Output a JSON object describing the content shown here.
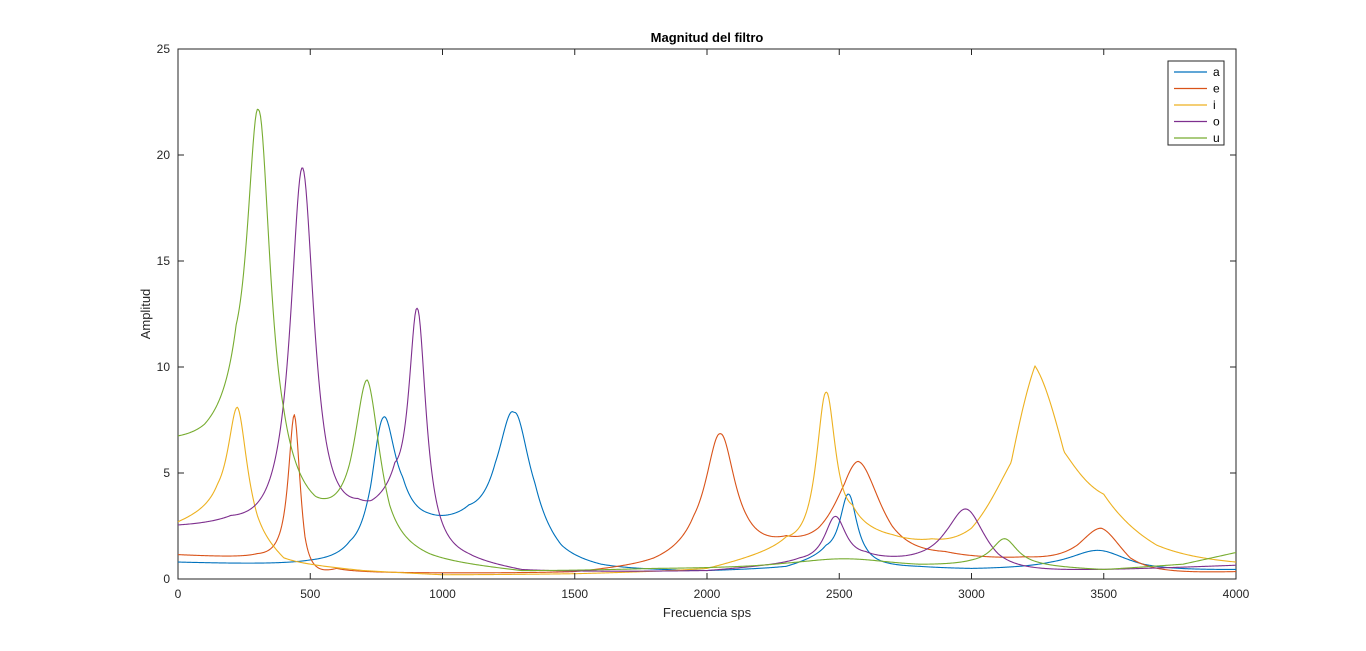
{
  "chart_data": {
    "type": "line",
    "title": "Magnitud del filtro",
    "xlabel": "Frecuencia sps",
    "ylabel": "Amplitud",
    "xlim": [
      0,
      4000
    ],
    "ylim": [
      0,
      25
    ],
    "xticks": [
      "0",
      "500",
      "1000",
      "1500",
      "2000",
      "2500",
      "3000",
      "3500",
      "4000"
    ],
    "yticks": [
      "0",
      "5",
      "10",
      "15",
      "20",
      "25"
    ],
    "grid": false,
    "legend_position": "top-right",
    "series": [
      {
        "name": "a",
        "color": "#0072BD",
        "baseline": 0.4,
        "peaks": [
          [
            775,
            7.2,
            60
          ],
          [
            1270,
            7.4,
            75
          ],
          [
            2535,
            3.6,
            40
          ],
          [
            3480,
            1.0,
            140
          ]
        ],
        "points": [
          [
            0,
            0.8
          ],
          [
            300,
            0.75
          ],
          [
            500,
            0.9
          ],
          [
            650,
            1.8
          ],
          [
            730,
            4.5
          ],
          [
            775,
            7.6
          ],
          [
            850,
            4.8
          ],
          [
            950,
            3.1
          ],
          [
            1000,
            3.0
          ],
          [
            1100,
            3.5
          ],
          [
            1200,
            5.5
          ],
          [
            1270,
            7.85
          ],
          [
            1350,
            4.5
          ],
          [
            1450,
            1.6
          ],
          [
            1600,
            0.7
          ],
          [
            2000,
            0.4
          ],
          [
            2300,
            0.6
          ],
          [
            2450,
            1.6
          ],
          [
            2535,
            4.0
          ],
          [
            2600,
            1.5
          ],
          [
            2800,
            0.6
          ],
          [
            3000,
            0.5
          ],
          [
            3300,
            0.8
          ],
          [
            3480,
            1.35
          ],
          [
            3650,
            0.7
          ],
          [
            4000,
            0.45
          ]
        ]
      },
      {
        "name": "e",
        "color": "#D95319",
        "baseline": 0.3,
        "peaks": [
          [
            440,
            7.3,
            28
          ],
          [
            2050,
            6.4,
            70
          ],
          [
            2570,
            4.9,
            110
          ],
          [
            3490,
            1.9,
            110
          ]
        ],
        "points": [
          [
            0,
            1.15
          ],
          [
            300,
            1.2
          ],
          [
            380,
            2.0
          ],
          [
            440,
            7.75
          ],
          [
            480,
            2.0
          ],
          [
            600,
            0.5
          ],
          [
            900,
            0.3
          ],
          [
            1500,
            0.35
          ],
          [
            1800,
            1.0
          ],
          [
            1950,
            3.0
          ],
          [
            2050,
            6.85
          ],
          [
            2150,
            3.0
          ],
          [
            2300,
            2.05
          ],
          [
            2420,
            2.4
          ],
          [
            2520,
            4.5
          ],
          [
            2570,
            5.55
          ],
          [
            2700,
            2.5
          ],
          [
            2900,
            1.3
          ],
          [
            3200,
            1.05
          ],
          [
            3400,
            1.6
          ],
          [
            3490,
            2.4
          ],
          [
            3600,
            1.0
          ],
          [
            4000,
            0.35
          ]
        ]
      },
      {
        "name": "i",
        "color": "#EDB120",
        "baseline": 0.2,
        "peaks": [
          [
            225,
            5.4,
            45
          ],
          [
            2450,
            8.2,
            45
          ],
          [
            3240,
            9.2,
            210
          ]
        ],
        "points": [
          [
            0,
            2.7
          ],
          [
            150,
            4.5
          ],
          [
            225,
            8.1
          ],
          [
            300,
            3.0
          ],
          [
            400,
            1.0
          ],
          [
            700,
            0.4
          ],
          [
            1000,
            0.2
          ],
          [
            1500,
            0.25
          ],
          [
            2000,
            0.5
          ],
          [
            2300,
            2.0
          ],
          [
            2450,
            8.8
          ],
          [
            2550,
            3.5
          ],
          [
            2700,
            2.1
          ],
          [
            2850,
            1.9
          ],
          [
            3000,
            2.4
          ],
          [
            3150,
            5.5
          ],
          [
            3240,
            10.05
          ],
          [
            3350,
            6.0
          ],
          [
            3500,
            4.0
          ],
          [
            3700,
            1.6
          ],
          [
            4000,
            0.8
          ]
        ]
      },
      {
        "name": "o",
        "color": "#7E2F8E",
        "baseline": 0.3,
        "peaks": [
          [
            470,
            18.3,
            55
          ],
          [
            905,
            11.9,
            40
          ],
          [
            2485,
            2.4,
            50
          ],
          [
            2980,
            2.9,
            90
          ]
        ],
        "points": [
          [
            0,
            2.55
          ],
          [
            200,
            3.0
          ],
          [
            380,
            6.5
          ],
          [
            470,
            19.4
          ],
          [
            560,
            6.5
          ],
          [
            680,
            3.8
          ],
          [
            730,
            3.7
          ],
          [
            820,
            5.5
          ],
          [
            905,
            12.75
          ],
          [
            960,
            5.0
          ],
          [
            1100,
            1.2
          ],
          [
            1300,
            0.45
          ],
          [
            2000,
            0.4
          ],
          [
            2350,
            1.0
          ],
          [
            2485,
            2.95
          ],
          [
            2600,
            1.3
          ],
          [
            2750,
            1.1
          ],
          [
            2900,
            2.2
          ],
          [
            2980,
            3.3
          ],
          [
            3100,
            1.2
          ],
          [
            3400,
            0.45
          ],
          [
            4000,
            0.65
          ]
        ]
      },
      {
        "name": "u",
        "color": "#77AC30",
        "baseline": 0.2,
        "peaks": [
          [
            305,
            19.6,
            55
          ],
          [
            715,
            7.0,
            60
          ],
          [
            3125,
            1.3,
            60
          ],
          [
            2520,
            0.55,
            250
          ]
        ],
        "points": [
          [
            0,
            6.75
          ],
          [
            100,
            7.3
          ],
          [
            220,
            12.0
          ],
          [
            305,
            22.1
          ],
          [
            400,
            8.0
          ],
          [
            520,
            3.9
          ],
          [
            560,
            3.8
          ],
          [
            650,
            5.5
          ],
          [
            715,
            9.4
          ],
          [
            800,
            3.5
          ],
          [
            950,
            1.2
          ],
          [
            1300,
            0.4
          ],
          [
            1800,
            0.5
          ],
          [
            2300,
            0.75
          ],
          [
            2520,
            0.95
          ],
          [
            2800,
            0.7
          ],
          [
            3000,
            0.9
          ],
          [
            3125,
            1.9
          ],
          [
            3250,
            0.8
          ],
          [
            3500,
            0.45
          ],
          [
            3800,
            0.7
          ],
          [
            4000,
            1.25
          ]
        ]
      }
    ]
  }
}
